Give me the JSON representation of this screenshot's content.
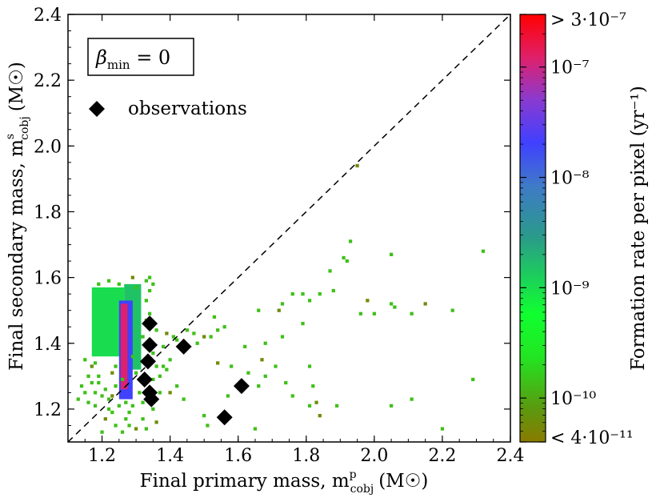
{
  "chart_data": {
    "type": "heatmap",
    "xlabel": "Final primary mass, m",
    "xlabel_sup": "p",
    "xlabel_sub": "cobj",
    "xlabel_unit": "(M☉)",
    "ylabel": "Final secondary mass, m",
    "ylabel_sup": "s",
    "ylabel_sub": "cobj",
    "ylabel_unit": "(M☉)",
    "xlim": [
      1.1,
      2.4
    ],
    "ylim": [
      1.1,
      2.4
    ],
    "xticks": [
      "1.2",
      "1.4",
      "1.6",
      "1.8",
      "2.0",
      "2.2",
      "2.4"
    ],
    "yticks": [
      "1.2",
      "1.4",
      "1.6",
      "1.8",
      "2.0",
      "2.2",
      "2.4"
    ],
    "annotation": "β",
    "annotation_sub": "min",
    "annotation_tail": " = 0",
    "legend": {
      "marker": "diamond",
      "label": "observations",
      "position": "top-left"
    },
    "diagonal": {
      "style": "dashed",
      "from": [
        1.1,
        1.1
      ],
      "to": [
        2.4,
        2.4
      ]
    },
    "colorbar": {
      "label": "Formation rate per pixel (yr⁻¹)",
      "scale": "log",
      "range": [
        4e-11,
        3e-07
      ],
      "ticks": [
        "> 3·10⁻⁷",
        "10⁻⁷",
        "10⁻⁸",
        "10⁻⁹",
        "10⁻¹⁰",
        "< 4·10⁻¹¹"
      ],
      "tick_values": [
        3e-07,
        1e-07,
        1e-08,
        1e-09,
        1e-10,
        4e-11
      ],
      "colors": [
        "#808000",
        "#00ff00",
        "#2a9d8f",
        "#4040ff",
        "#9933cc",
        "#ff0000"
      ]
    },
    "observations": [
      {
        "x": 1.34,
        "y": 1.46
      },
      {
        "x": 1.34,
        "y": 1.395
      },
      {
        "x": 1.335,
        "y": 1.345
      },
      {
        "x": 1.325,
        "y": 1.29
      },
      {
        "x": 1.34,
        "y": 1.25
      },
      {
        "x": 1.345,
        "y": 1.23
      },
      {
        "x": 1.44,
        "y": 1.39
      },
      {
        "x": 1.61,
        "y": 1.27
      },
      {
        "x": 1.56,
        "y": 1.175
      }
    ],
    "density_regions": [
      {
        "x0": 1.17,
        "x1": 1.265,
        "y0": 1.36,
        "y1": 1.57,
        "rate": 1e-09
      },
      {
        "x0": 1.265,
        "x1": 1.315,
        "y0": 1.32,
        "y1": 1.58,
        "rate": 1.5e-09
      },
      {
        "x0": 1.25,
        "x1": 1.29,
        "y0": 1.23,
        "y1": 1.53,
        "rate": 2e-08
      },
      {
        "x0": 1.255,
        "x1": 1.275,
        "y0": 1.26,
        "y1": 1.52,
        "rate": 1.2e-07
      }
    ],
    "scatter_pixels": [
      [
        1.95,
        1.94
      ],
      [
        1.93,
        1.71
      ],
      [
        1.91,
        1.66
      ],
      [
        2.05,
        1.67
      ],
      [
        2.32,
        1.68
      ],
      [
        1.92,
        1.65
      ],
      [
        1.87,
        1.62
      ],
      [
        2.15,
        1.52
      ],
      [
        1.88,
        1.56
      ],
      [
        1.84,
        1.55
      ],
      [
        1.79,
        1.55
      ],
      [
        1.76,
        1.55
      ],
      [
        1.81,
        1.53
      ],
      [
        1.73,
        1.52
      ],
      [
        1.98,
        1.53
      ],
      [
        2.05,
        1.52
      ],
      [
        2.06,
        1.51
      ],
      [
        2.23,
        1.5
      ],
      [
        1.96,
        1.49
      ],
      [
        2.11,
        1.49
      ],
      [
        2.0,
        1.49
      ],
      [
        1.72,
        1.5
      ],
      [
        1.66,
        1.5
      ],
      [
        1.79,
        1.46
      ],
      [
        1.53,
        1.48
      ],
      [
        1.56,
        1.45
      ],
      [
        1.54,
        1.44
      ],
      [
        1.47,
        1.43
      ],
      [
        1.5,
        1.42
      ],
      [
        1.52,
        1.42
      ],
      [
        1.45,
        1.44
      ],
      [
        1.48,
        1.4
      ],
      [
        1.68,
        1.4
      ],
      [
        1.73,
        1.42
      ],
      [
        1.58,
        1.33
      ],
      [
        1.54,
        1.34
      ],
      [
        1.68,
        1.3
      ],
      [
        1.71,
        1.33
      ],
      [
        1.81,
        1.33
      ],
      [
        1.74,
        1.28
      ],
      [
        1.82,
        1.27
      ],
      [
        1.76,
        1.24
      ],
      [
        1.83,
        1.22
      ],
      [
        1.81,
        1.21
      ],
      [
        1.89,
        1.21
      ],
      [
        2.05,
        1.21
      ],
      [
        2.11,
        1.23
      ],
      [
        2.2,
        1.14
      ],
      [
        2.29,
        1.29
      ],
      [
        1.84,
        1.18
      ],
      [
        1.42,
        1.27
      ],
      [
        1.44,
        1.23
      ],
      [
        1.39,
        1.32
      ],
      [
        1.37,
        1.3
      ],
      [
        1.38,
        1.33
      ],
      [
        1.4,
        1.35
      ],
      [
        1.4,
        1.25
      ],
      [
        1.37,
        1.25
      ],
      [
        1.36,
        1.33
      ],
      [
        1.35,
        1.37
      ],
      [
        1.42,
        1.41
      ],
      [
        1.41,
        1.42
      ],
      [
        1.62,
        1.39
      ],
      [
        1.67,
        1.35
      ],
      [
        1.63,
        1.31
      ],
      [
        1.66,
        1.27
      ],
      [
        1.51,
        1.15
      ],
      [
        1.5,
        1.18
      ],
      [
        1.65,
        1.14
      ],
      [
        1.57,
        1.24
      ],
      [
        1.36,
        1.16
      ],
      [
        1.33,
        1.14
      ],
      [
        1.32,
        1.22
      ],
      [
        1.29,
        1.21
      ],
      [
        1.31,
        1.25
      ],
      [
        1.27,
        1.22
      ],
      [
        1.24,
        1.15
      ],
      [
        1.21,
        1.17
      ],
      [
        1.2,
        1.13
      ],
      [
        1.22,
        1.2
      ],
      [
        1.18,
        1.25
      ],
      [
        1.17,
        1.28
      ],
      [
        1.2,
        1.24
      ],
      [
        1.19,
        1.28
      ],
      [
        1.23,
        1.24
      ],
      [
        1.21,
        1.26
      ],
      [
        1.14,
        1.27
      ],
      [
        1.15,
        1.25
      ],
      [
        1.13,
        1.23
      ],
      [
        1.16,
        1.22
      ],
      [
        1.24,
        1.33
      ],
      [
        1.23,
        1.31
      ],
      [
        1.26,
        1.29
      ],
      [
        1.27,
        1.17
      ],
      [
        1.28,
        1.15
      ],
      [
        1.3,
        1.31
      ],
      [
        1.29,
        1.36
      ],
      [
        1.32,
        1.42
      ],
      [
        1.33,
        1.47
      ],
      [
        1.34,
        1.49
      ],
      [
        1.33,
        1.53
      ],
      [
        1.34,
        1.56
      ],
      [
        1.34,
        1.6
      ],
      [
        1.35,
        1.58
      ],
      [
        1.3,
        1.57
      ],
      [
        1.29,
        1.6
      ],
      [
        1.25,
        1.58
      ],
      [
        1.22,
        1.59
      ],
      [
        1.19,
        1.58
      ],
      [
        1.33,
        1.59
      ],
      [
        1.23,
        1.19
      ],
      [
        1.26,
        1.13
      ],
      [
        1.3,
        1.14
      ],
      [
        1.32,
        1.17
      ],
      [
        1.35,
        1.2
      ],
      [
        1.34,
        1.24
      ],
      [
        1.35,
        1.29
      ],
      [
        1.36,
        1.44
      ],
      [
        1.38,
        1.39
      ],
      [
        1.39,
        1.43
      ],
      [
        1.18,
        1.21
      ],
      [
        1.24,
        1.27
      ],
      [
        1.25,
        1.21
      ],
      [
        1.28,
        1.19
      ],
      [
        1.22,
        1.23
      ],
      [
        1.19,
        1.3
      ],
      [
        1.17,
        1.33
      ],
      [
        1.16,
        1.3
      ],
      [
        1.15,
        1.35
      ],
      [
        1.18,
        1.34
      ]
    ]
  }
}
